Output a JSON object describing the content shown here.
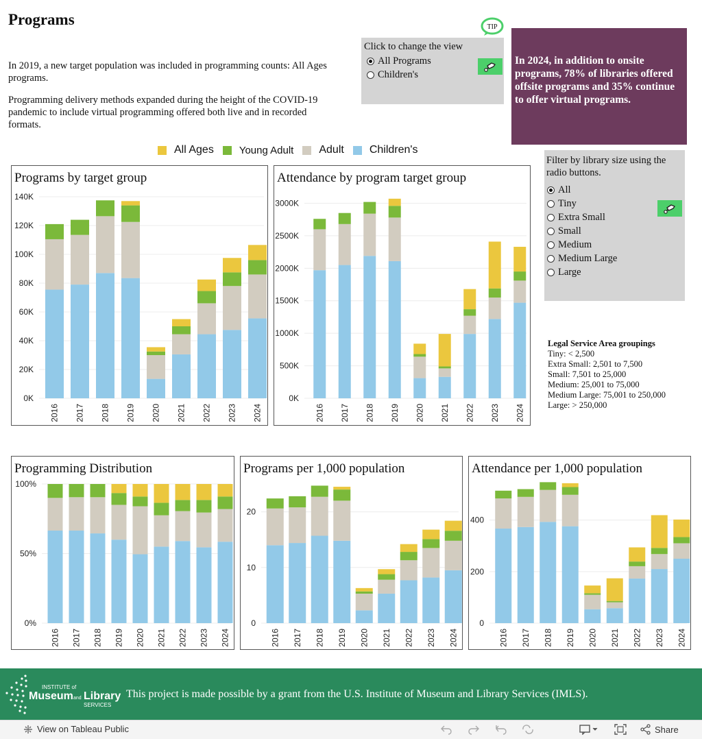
{
  "page": {
    "title": "Programs",
    "intro1": "In 2019, a new target population was included in programming counts: All Ages programs.",
    "intro2": "Programming delivery methods expanded during the height of the COVID-19 pandemic to include virtual programming offered both live and in recorded formats."
  },
  "tip": {
    "label": "TIP"
  },
  "view_toggle": {
    "title": "Click to change the view",
    "options": [
      "All Programs",
      "Children's"
    ],
    "selected": "All Programs"
  },
  "callout": {
    "text": "In 2024, in addition to onsite programs, 78% of libraries offered offsite programs and 35% continue to offer virtual programs."
  },
  "legend": {
    "items": [
      {
        "label": "All Ages",
        "color": "#ebc73e"
      },
      {
        "label": "Young Adult",
        "color": "#7bb93a"
      },
      {
        "label": "Adult",
        "color": "#d2ccc0"
      },
      {
        "label": "Children's",
        "color": "#92c9e8"
      }
    ]
  },
  "size_filter": {
    "title": "Filter by library size using the radio buttons.",
    "options": [
      "All",
      "Tiny",
      "Extra Small",
      "Small",
      "Medium",
      "Medium Large",
      "Large"
    ],
    "selected": "All"
  },
  "lsa": {
    "heading": "Legal Service Area groupings",
    "lines": [
      "Tiny: < 2,500",
      "Extra Small: 2,501 to 7,500",
      "Small: 7,501 to 25,000",
      "Medium: 25,001 to 75,000",
      "Medium Large: 75,001 to 250,000",
      "Large: > 250,000"
    ]
  },
  "chart_data": [
    {
      "id": "programs",
      "type": "bar",
      "stacked": true,
      "title": "Programs by target group",
      "categories": [
        "2016",
        "2017",
        "2018",
        "2019",
        "2020",
        "2021",
        "2022",
        "2023",
        "2024"
      ],
      "series": [
        {
          "name": "Children's",
          "values": [
            75500,
            79000,
            87000,
            83500,
            13500,
            30500,
            44500,
            47500,
            55500
          ]
        },
        {
          "name": "Adult",
          "values": [
            35000,
            34500,
            39500,
            39000,
            16500,
            14000,
            21500,
            30500,
            30500
          ]
        },
        {
          "name": "Young Adult",
          "values": [
            10500,
            10500,
            11000,
            11500,
            2500,
            5500,
            8500,
            9500,
            10000
          ]
        },
        {
          "name": "All Ages",
          "values": [
            0,
            0,
            0,
            3000,
            3000,
            5000,
            8000,
            10000,
            10500
          ]
        }
      ],
      "ylim": [
        0,
        140000
      ],
      "yticks": [
        0,
        20000,
        40000,
        60000,
        80000,
        100000,
        120000,
        140000
      ],
      "ytick_labels": [
        "0K",
        "20K",
        "40K",
        "60K",
        "80K",
        "100K",
        "120K",
        "140K"
      ]
    },
    {
      "id": "attendance",
      "type": "bar",
      "stacked": true,
      "title": "Attendance by program target group",
      "categories": [
        "2016",
        "2017",
        "2018",
        "2019",
        "2020",
        "2021",
        "2022",
        "2023",
        "2024"
      ],
      "series": [
        {
          "name": "Children's",
          "values": [
            1970000,
            2050000,
            2190000,
            2110000,
            310000,
            330000,
            990000,
            1220000,
            1470000
          ]
        },
        {
          "name": "Adult",
          "values": [
            630000,
            630000,
            650000,
            670000,
            330000,
            130000,
            280000,
            330000,
            340000
          ]
        },
        {
          "name": "Young Adult",
          "values": [
            160000,
            170000,
            180000,
            180000,
            40000,
            30000,
            100000,
            140000,
            140000
          ]
        },
        {
          "name": "All Ages",
          "values": [
            0,
            0,
            0,
            110000,
            160000,
            500000,
            310000,
            720000,
            380000
          ]
        }
      ],
      "ylim": [
        0,
        3100000
      ],
      "yticks": [
        0,
        500000,
        1000000,
        1500000,
        2000000,
        2500000,
        3000000
      ],
      "ytick_labels": [
        "0K",
        "500K",
        "1000K",
        "1500K",
        "2000K",
        "2500K",
        "3000K"
      ]
    },
    {
      "id": "distribution",
      "type": "bar",
      "stacked": true,
      "title": "Programming Distribution",
      "categories": [
        "2016",
        "2017",
        "2018",
        "2019",
        "2020",
        "2021",
        "2022",
        "2023",
        "2024"
      ],
      "series": [
        {
          "name": "Children's",
          "values": [
            66.5,
            66.5,
            64.5,
            60,
            49.5,
            55,
            59,
            54.5,
            58.5
          ]
        },
        {
          "name": "Adult",
          "values": [
            23.5,
            24,
            26,
            25,
            34.5,
            22.5,
            21.5,
            25,
            23.5
          ]
        },
        {
          "name": "Young Adult",
          "values": [
            10,
            9.5,
            9.5,
            8.5,
            7,
            9,
            8,
            9,
            9
          ]
        },
        {
          "name": "All Ages",
          "values": [
            0,
            0,
            0,
            6.5,
            9,
            13.5,
            11.5,
            11.5,
            9
          ]
        }
      ],
      "ylim": [
        0,
        100
      ],
      "yticks": [
        0,
        50,
        100
      ],
      "ytick_labels": [
        "0%",
        "50%",
        "100%"
      ]
    },
    {
      "id": "programs_per_1000",
      "type": "bar",
      "stacked": true,
      "title": "Programs per 1,000 population",
      "categories": [
        "2016",
        "2017",
        "2018",
        "2019",
        "2020",
        "2021",
        "2022",
        "2023",
        "2024"
      ],
      "series": [
        {
          "name": "Children's",
          "values": [
            14.0,
            14.4,
            15.7,
            14.8,
            2.3,
            5.3,
            7.7,
            8.2,
            9.5
          ]
        },
        {
          "name": "Adult",
          "values": [
            6.6,
            6.4,
            7.0,
            7.2,
            3.0,
            2.5,
            3.6,
            5.3,
            5.3
          ]
        },
        {
          "name": "Young Adult",
          "values": [
            1.8,
            2.0,
            2.0,
            2.0,
            0.4,
            1.0,
            1.5,
            1.6,
            1.8
          ]
        },
        {
          "name": "All Ages",
          "values": [
            0,
            0,
            0,
            0.5,
            0.6,
            0.9,
            1.4,
            1.7,
            1.8
          ]
        }
      ],
      "ylim": [
        0,
        25
      ],
      "yticks": [
        0,
        10,
        20
      ],
      "ytick_labels": [
        "0",
        "10",
        "20"
      ]
    },
    {
      "id": "attendance_per_1000",
      "type": "bar",
      "stacked": true,
      "title": "Attendance per 1,000 population",
      "categories": [
        "2016",
        "2017",
        "2018",
        "2019",
        "2020",
        "2021",
        "2022",
        "2023",
        "2024"
      ],
      "series": [
        {
          "name": "Children's",
          "values": [
            367,
            373,
            393,
            376,
            54,
            58,
            173,
            210,
            250
          ]
        },
        {
          "name": "Adult",
          "values": [
            117,
            117,
            124,
            122,
            56,
            23,
            48,
            58,
            60
          ]
        },
        {
          "name": "Young Adult",
          "values": [
            30,
            30,
            30,
            30,
            6,
            5,
            18,
            24,
            24
          ]
        },
        {
          "name": "All Ages",
          "values": [
            0,
            0,
            0,
            15,
            30,
            88,
            55,
            127,
            68
          ]
        }
      ],
      "ylim": [
        0,
        540
      ],
      "yticks": [
        0,
        200,
        400
      ],
      "ytick_labels": [
        "0",
        "200",
        "400"
      ]
    }
  ],
  "footer": {
    "logo_line1": "INSTITUTE of",
    "logo_line2": "Museum",
    "logo_and": "and",
    "logo_line3": "Library",
    "logo_line4": "SERVICES",
    "text": "This project is made possible by a grant from the U.S. Institute of Museum and Library Services (IMLS)."
  },
  "toolbar": {
    "view_label": "View on Tableau Public",
    "share_label": "Share"
  }
}
